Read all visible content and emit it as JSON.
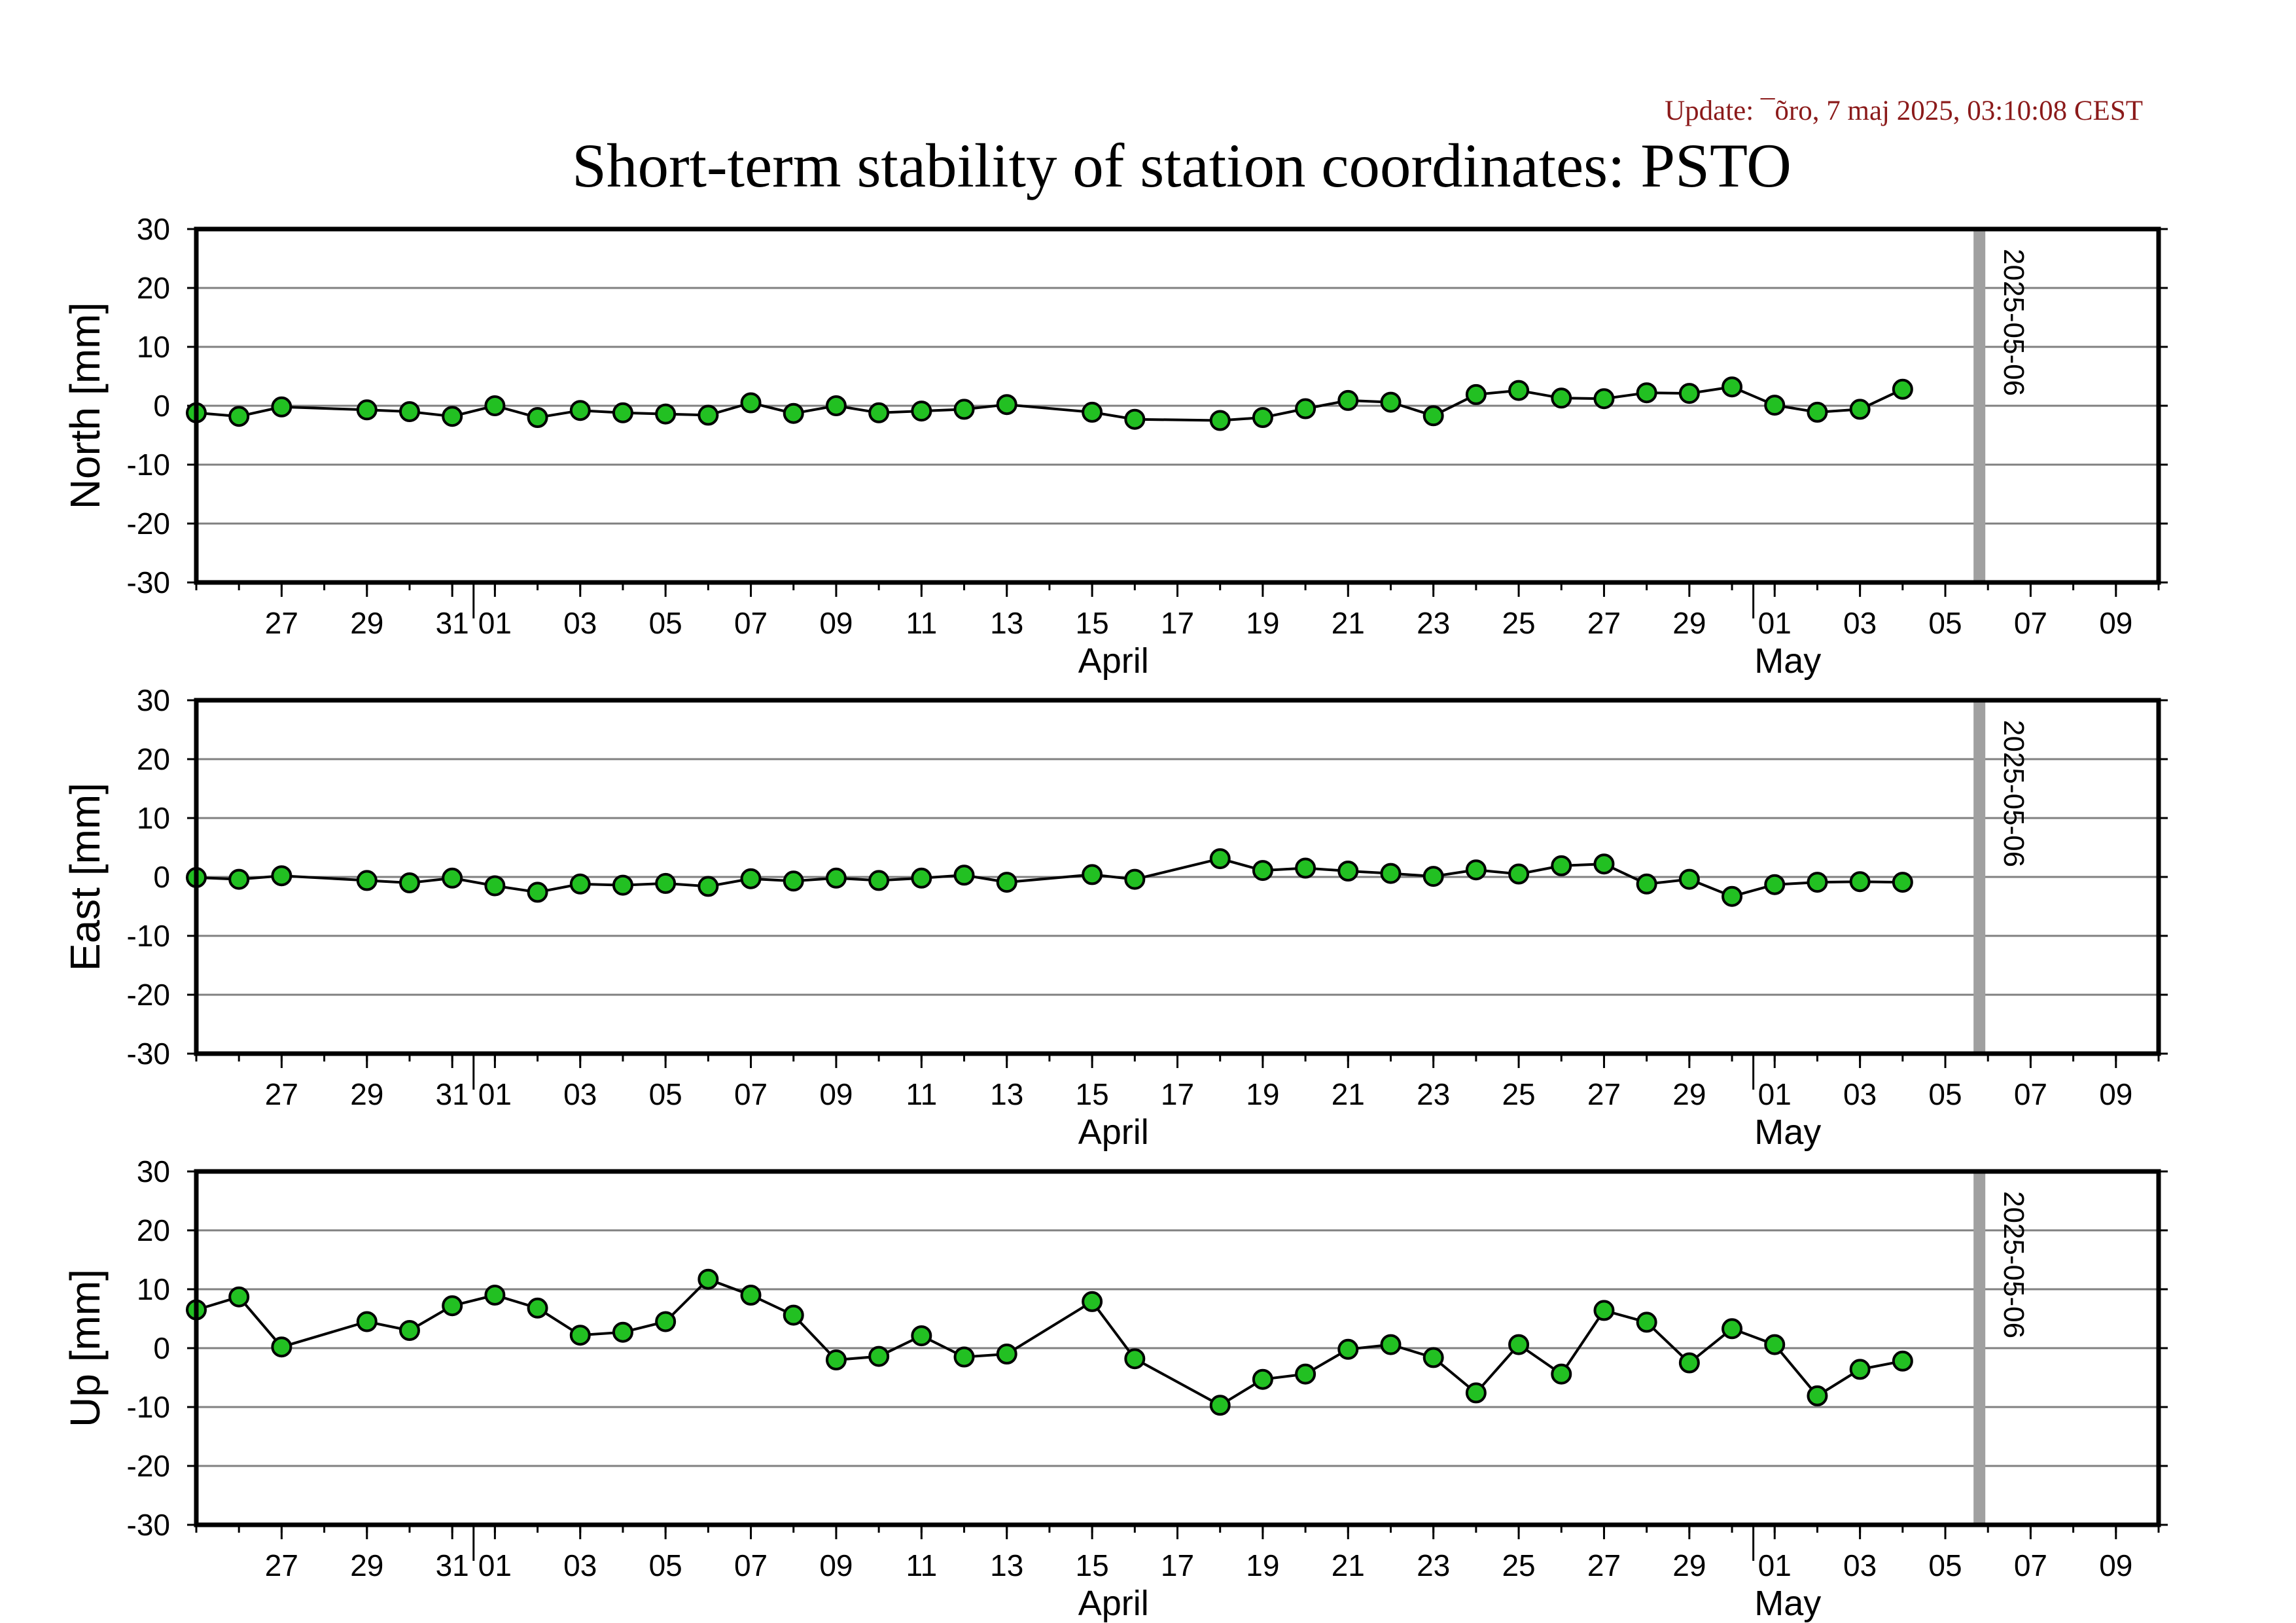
{
  "update_text": "Update: ¯õro, 7 maj 2025, 03:10:08 CEST",
  "title": "Short-term stability of station coordinates: PSTO",
  "marker_label": "2025-05-06",
  "colors": {
    "point_fill": "#22c022",
    "point_stroke": "#000000",
    "line": "#000000",
    "grid": "#808080",
    "marker": "#a0a0a0",
    "update_text": "#8b1a1a"
  },
  "chart_data": [
    {
      "type": "line",
      "ylabel": "North [mm]",
      "ylim": [
        -30,
        30
      ],
      "y_ticks": [
        "30",
        "20",
        "10",
        "0",
        "-10",
        "-20",
        "-30"
      ],
      "x_range": [
        "2025-03-25",
        "2025-05-10"
      ],
      "x_tick_labels": [
        "27",
        "29",
        "31",
        "01",
        "03",
        "05",
        "07",
        "09",
        "11",
        "13",
        "15",
        "17",
        "19",
        "21",
        "23",
        "25",
        "27",
        "29",
        "01",
        "03",
        "05",
        "07",
        "09"
      ],
      "month_labels": [
        "April",
        "May"
      ],
      "marker_date": "2025-05-06",
      "grid": true,
      "x": [
        "2025-03-25",
        "2025-03-26",
        "2025-03-27",
        "2025-03-29",
        "2025-03-30",
        "2025-03-31",
        "2025-04-01",
        "2025-04-02",
        "2025-04-03",
        "2025-04-04",
        "2025-04-05",
        "2025-04-06",
        "2025-04-07",
        "2025-04-08",
        "2025-04-09",
        "2025-04-10",
        "2025-04-11",
        "2025-04-12",
        "2025-04-13",
        "2025-04-15",
        "2025-04-16",
        "2025-04-18",
        "2025-04-19",
        "2025-04-20",
        "2025-04-21",
        "2025-04-22",
        "2025-04-23",
        "2025-04-24",
        "2025-04-25",
        "2025-04-26",
        "2025-04-27",
        "2025-04-28",
        "2025-04-29",
        "2025-04-30",
        "2025-05-01",
        "2025-05-02",
        "2025-05-03",
        "2025-05-04"
      ],
      "values": [
        -1.2,
        -1.8,
        -0.2,
        -0.7,
        -1.0,
        -1.8,
        0.0,
        -2.0,
        -0.8,
        -1.2,
        -1.4,
        -1.6,
        0.5,
        -1.3,
        0.0,
        -1.2,
        -0.9,
        -0.6,
        0.2,
        -1.1,
        -2.3,
        -2.5,
        -2.0,
        -0.5,
        0.9,
        0.6,
        -1.7,
        1.9,
        2.6,
        1.3,
        1.2,
        2.2,
        2.1,
        3.2,
        0.1,
        -1.1,
        -0.6,
        2.8
      ]
    },
    {
      "type": "line",
      "ylabel": "East [mm]",
      "ylim": [
        -30,
        30
      ],
      "y_ticks": [
        "30",
        "20",
        "10",
        "0",
        "-10",
        "-20",
        "-30"
      ],
      "x_range": [
        "2025-03-25",
        "2025-05-10"
      ],
      "x_tick_labels": [
        "27",
        "29",
        "31",
        "01",
        "03",
        "05",
        "07",
        "09",
        "11",
        "13",
        "15",
        "17",
        "19",
        "21",
        "23",
        "25",
        "27",
        "29",
        "01",
        "03",
        "05",
        "07",
        "09"
      ],
      "month_labels": [
        "April",
        "May"
      ],
      "marker_date": "2025-05-06",
      "grid": true,
      "x": [
        "2025-03-25",
        "2025-03-26",
        "2025-03-27",
        "2025-03-29",
        "2025-03-30",
        "2025-03-31",
        "2025-04-01",
        "2025-04-02",
        "2025-04-03",
        "2025-04-04",
        "2025-04-05",
        "2025-04-06",
        "2025-04-07",
        "2025-04-08",
        "2025-04-09",
        "2025-04-10",
        "2025-04-11",
        "2025-04-12",
        "2025-04-13",
        "2025-04-15",
        "2025-04-16",
        "2025-04-18",
        "2025-04-19",
        "2025-04-20",
        "2025-04-21",
        "2025-04-22",
        "2025-04-23",
        "2025-04-24",
        "2025-04-25",
        "2025-04-26",
        "2025-04-27",
        "2025-04-28",
        "2025-04-29",
        "2025-04-30",
        "2025-05-01",
        "2025-05-02",
        "2025-05-03",
        "2025-05-04"
      ],
      "values": [
        -0.1,
        -0.4,
        0.2,
        -0.6,
        -1.0,
        -0.2,
        -1.5,
        -2.6,
        -1.2,
        -1.4,
        -1.1,
        -1.6,
        -0.3,
        -0.7,
        -0.2,
        -0.6,
        -0.2,
        0.3,
        -0.9,
        0.4,
        -0.4,
        3.1,
        1.1,
        1.5,
        1.0,
        0.6,
        0.1,
        1.2,
        0.5,
        1.9,
        2.2,
        -1.2,
        -0.4,
        -3.3,
        -1.3,
        -0.9,
        -0.8,
        -0.9
      ]
    },
    {
      "type": "line",
      "ylabel": "Up [mm]",
      "ylim": [
        -30,
        30
      ],
      "y_ticks": [
        "30",
        "20",
        "10",
        "0",
        "-10",
        "-20",
        "-30"
      ],
      "x_range": [
        "2025-03-25",
        "2025-05-10"
      ],
      "x_tick_labels": [
        "27",
        "29",
        "31",
        "01",
        "03",
        "05",
        "07",
        "09",
        "11",
        "13",
        "15",
        "17",
        "19",
        "21",
        "23",
        "25",
        "27",
        "29",
        "01",
        "03",
        "05",
        "07",
        "09"
      ],
      "month_labels": [
        "April",
        "May"
      ],
      "marker_date": "2025-05-06",
      "grid": true,
      "x": [
        "2025-03-25",
        "2025-03-26",
        "2025-03-27",
        "2025-03-29",
        "2025-03-30",
        "2025-03-31",
        "2025-04-01",
        "2025-04-02",
        "2025-04-03",
        "2025-04-04",
        "2025-04-05",
        "2025-04-06",
        "2025-04-07",
        "2025-04-08",
        "2025-04-09",
        "2025-04-10",
        "2025-04-11",
        "2025-04-12",
        "2025-04-13",
        "2025-04-15",
        "2025-04-16",
        "2025-04-18",
        "2025-04-19",
        "2025-04-20",
        "2025-04-21",
        "2025-04-22",
        "2025-04-23",
        "2025-04-24",
        "2025-04-25",
        "2025-04-26",
        "2025-04-27",
        "2025-04-28",
        "2025-04-29",
        "2025-04-30",
        "2025-05-01",
        "2025-05-02",
        "2025-05-03",
        "2025-05-04"
      ],
      "values": [
        6.5,
        8.7,
        0.2,
        4.5,
        3.0,
        7.2,
        9.0,
        6.8,
        2.2,
        2.7,
        4.5,
        11.7,
        9.0,
        5.6,
        -2.0,
        -1.4,
        2.1,
        -1.5,
        -1.0,
        7.9,
        -1.8,
        -9.7,
        -5.3,
        -4.4,
        -0.2,
        0.6,
        -1.6,
        -7.6,
        0.6,
        -4.4,
        6.4,
        4.4,
        -2.5,
        3.3,
        0.6,
        -8.1,
        -3.6,
        -2.2
      ]
    }
  ]
}
